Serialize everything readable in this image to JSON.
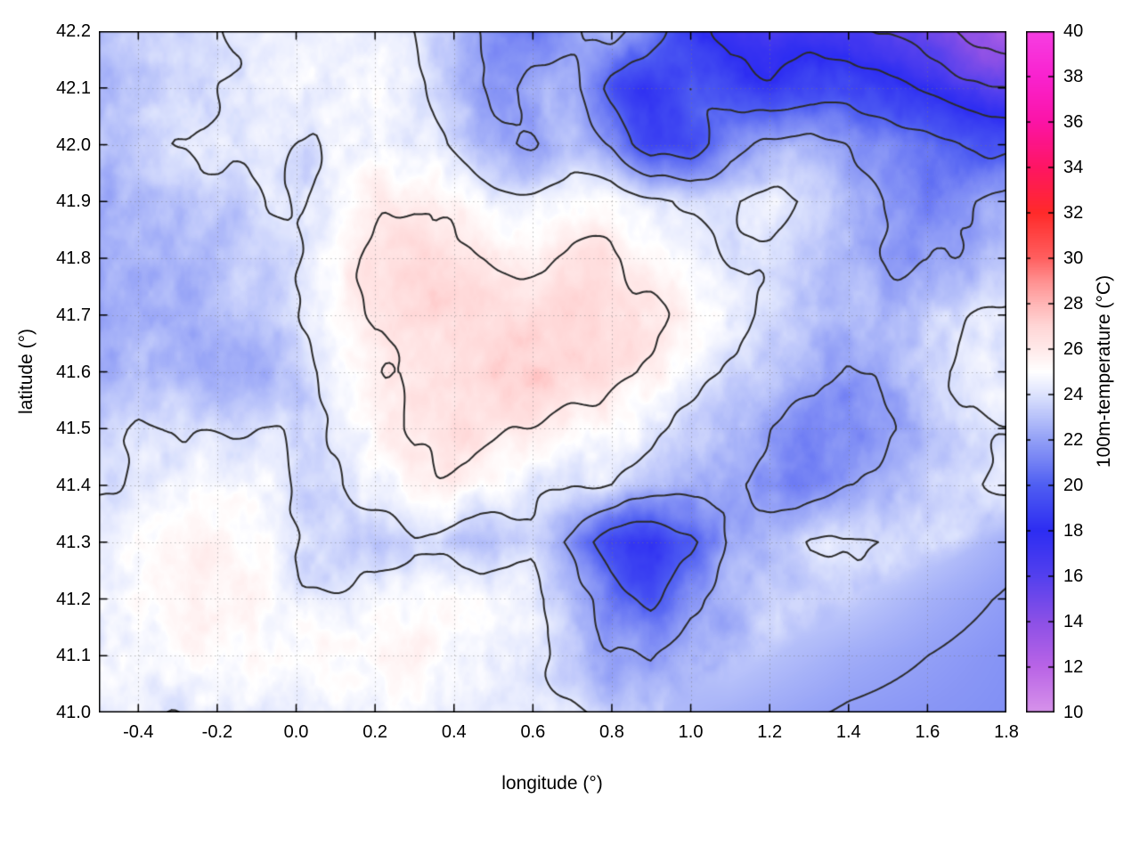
{
  "chart_data": {
    "type": "heatmap",
    "title": "",
    "xlabel": "longitude (°)",
    "ylabel": "latitude (°)",
    "xlim": [
      -0.5,
      1.8
    ],
    "ylim": [
      41.0,
      42.2
    ],
    "grid_on": true,
    "xticks": {
      "values": [
        -0.4,
        -0.2,
        0.0,
        0.2,
        0.4,
        0.6,
        0.8,
        1.0,
        1.2,
        1.4,
        1.6,
        1.8
      ],
      "labels": [
        "-0.4",
        "-0.2",
        "0.0",
        "0.2",
        "0.4",
        "0.6",
        "0.8",
        "1.0",
        "1.2",
        "1.4",
        "1.6",
        "1.8"
      ]
    },
    "yticks": {
      "values": [
        41.0,
        41.1,
        41.2,
        41.3,
        41.4,
        41.5,
        41.6,
        41.7,
        41.8,
        41.9,
        42.0,
        42.1,
        42.2
      ],
      "labels": [
        "41.0",
        "41.1",
        "41.2",
        "41.3",
        "41.4",
        "41.5",
        "41.6",
        "41.7",
        "41.8",
        "41.9",
        "42.0",
        "42.1",
        "42.2"
      ]
    },
    "colorbar": {
      "label": "100m-temperature (°C)",
      "min": 10,
      "max": 40,
      "tick_values": [
        10,
        12,
        14,
        16,
        18,
        20,
        22,
        24,
        26,
        28,
        30,
        32,
        34,
        36,
        38,
        40
      ],
      "tick_labels": [
        "10",
        "12",
        "14",
        "16",
        "18",
        "20",
        "22",
        "24",
        "26",
        "28",
        "30",
        "32",
        "34",
        "36",
        "38",
        "40"
      ]
    },
    "contour_levels": [
      12,
      14,
      16,
      18,
      20,
      22,
      24,
      26
    ],
    "contour_color": "#2b2b2b",
    "palette_stops": [
      [
        10,
        "#d793ea"
      ],
      [
        12,
        "#b964e6"
      ],
      [
        14,
        "#8c50e6"
      ],
      [
        16,
        "#5340ee"
      ],
      [
        18,
        "#2d2df2"
      ],
      [
        20,
        "#4f5ef2"
      ],
      [
        21,
        "#7280f4"
      ],
      [
        22,
        "#93a0f6"
      ],
      [
        23,
        "#b8c2fa"
      ],
      [
        24,
        "#dde3fd"
      ],
      [
        25,
        "#ffffff"
      ],
      [
        26,
        "#ffe9e9"
      ],
      [
        27,
        "#ffd6d6"
      ],
      [
        28,
        "#ffb5b5"
      ],
      [
        29,
        "#ff8f8f"
      ],
      [
        30,
        "#ff5f5f"
      ],
      [
        32,
        "#ff2a2a"
      ],
      [
        34,
        "#fe1563"
      ],
      [
        36,
        "#fb14a7"
      ],
      [
        38,
        "#f922cf"
      ],
      [
        40,
        "#f63fe3"
      ]
    ],
    "coastline": {
      "note": "smooth (sea) region in lower-right corner",
      "lon_start": 0.95,
      "slope": 0.375
    },
    "grid": {
      "lon_min": -0.5,
      "lon_step": 0.1,
      "lat_max": 42.2,
      "lat_step": 0.1,
      "ncols": 24,
      "nrows": 13,
      "order": "rows from lat 42.2 (top) down to lat 41.0 (bottom)",
      "values": [
        [
          23.2,
          23.4,
          23.6,
          23.8,
          24.0,
          24.2,
          24.3,
          24.2,
          24.0,
          23.2,
          21.8,
          21.0,
          21.3,
          22.5,
          21.0,
          18.5,
          17.2,
          17.0,
          17.3,
          16.8,
          16.2,
          15.2,
          13.8,
          13.0
        ],
        [
          23.2,
          23.4,
          23.6,
          23.9,
          24.0,
          24.2,
          24.4,
          24.3,
          24.0,
          23.4,
          22.4,
          22.8,
          22.0,
          19.2,
          18.6,
          20.0,
          18.8,
          18.4,
          19.6,
          19.8,
          18.8,
          17.8,
          16.8,
          16.2
        ],
        [
          23.3,
          23.6,
          23.8,
          24.0,
          24.1,
          24.3,
          24.5,
          24.4,
          24.1,
          23.6,
          23.0,
          22.2,
          22.6,
          21.6,
          18.8,
          19.2,
          21.6,
          22.2,
          22.6,
          22.2,
          21.6,
          21.0,
          20.2,
          19.6
        ],
        [
          22.6,
          22.9,
          23.1,
          23.3,
          23.6,
          24.1,
          24.9,
          25.5,
          25.5,
          25.1,
          24.6,
          24.4,
          24.6,
          25.0,
          24.6,
          24.1,
          23.9,
          24.0,
          23.5,
          22.6,
          22.1,
          21.6,
          22.1,
          22.6
        ],
        [
          22.1,
          22.4,
          22.9,
          23.1,
          23.4,
          24.1,
          25.4,
          26.1,
          26.3,
          26.1,
          25.9,
          25.6,
          25.9,
          26.1,
          25.6,
          24.9,
          24.1,
          23.6,
          23.1,
          22.6,
          22.1,
          21.9,
          22.4,
          23.1
        ],
        [
          21.6,
          22.1,
          22.6,
          23.1,
          23.3,
          23.9,
          25.1,
          26.3,
          26.6,
          26.7,
          26.6,
          26.6,
          26.7,
          26.6,
          26.3,
          25.6,
          24.4,
          23.6,
          23.1,
          22.9,
          23.1,
          23.4,
          23.9,
          24.1
        ],
        [
          22.1,
          22.4,
          22.6,
          22.6,
          22.9,
          23.6,
          24.9,
          26.1,
          26.6,
          26.9,
          27.1,
          26.9,
          26.6,
          26.4,
          25.9,
          25.1,
          24.1,
          23.1,
          22.6,
          22.1,
          22.6,
          23.6,
          24.1,
          24.3
        ],
        [
          23.6,
          24.1,
          23.9,
          23.6,
          23.6,
          24.1,
          24.6,
          25.6,
          26.4,
          26.6,
          26.5,
          26.1,
          25.6,
          25.4,
          24.9,
          23.6,
          22.6,
          21.6,
          20.6,
          21.1,
          22.1,
          23.1,
          23.6,
          23.9
        ],
        [
          24.1,
          24.4,
          24.6,
          24.4,
          24.1,
          24.1,
          24.4,
          25.1,
          25.6,
          25.6,
          25.4,
          24.9,
          24.6,
          24.4,
          23.6,
          22.6,
          21.6,
          21.1,
          20.6,
          21.6,
          22.6,
          23.6,
          24.1,
          24.4
        ],
        [
          24.6,
          24.9,
          25.1,
          24.9,
          24.6,
          24.1,
          23.6,
          23.1,
          23.6,
          23.1,
          22.6,
          23.6,
          21.6,
          19.1,
          18.6,
          19.6,
          21.6,
          22.6,
          23.9,
          24.1,
          23.9,
          23.4,
          22.9,
          22.4
        ],
        [
          24.9,
          25.1,
          25.3,
          25.1,
          24.7,
          24.3,
          24.1,
          24.4,
          24.9,
          25.1,
          25.1,
          24.6,
          23.1,
          21.1,
          19.6,
          21.6,
          22.6,
          23.1,
          23.4,
          23.3,
          22.9,
          22.5,
          22.2,
          21.9
        ],
        [
          24.6,
          24.9,
          25.1,
          24.9,
          24.6,
          24.4,
          24.6,
          24.9,
          25.3,
          25.4,
          25.1,
          24.6,
          23.6,
          22.1,
          21.6,
          22.9,
          23.3,
          23.0,
          22.7,
          22.4,
          22.2,
          22.0,
          21.8,
          21.6
        ],
        [
          24.1,
          24.3,
          24.4,
          24.4,
          24.1,
          24.1,
          24.3,
          24.4,
          24.9,
          25.1,
          24.9,
          24.4,
          23.9,
          23.1,
          22.9,
          22.7,
          22.5,
          22.3,
          22.1,
          21.9,
          21.8,
          21.7,
          21.6,
          21.5
        ]
      ]
    }
  }
}
